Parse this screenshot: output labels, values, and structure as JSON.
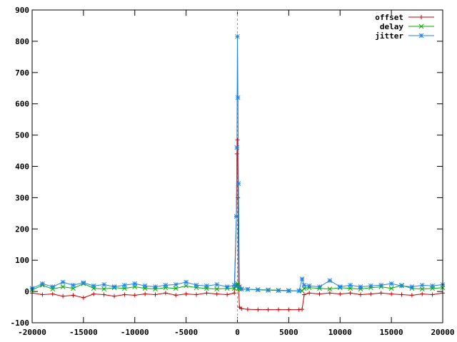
{
  "chart_data": {
    "type": "line",
    "title": "",
    "xlabel": "",
    "ylabel": "",
    "xlim": [
      -20000,
      20000
    ],
    "ylim": [
      -100,
      900
    ],
    "xticks": [
      -20000,
      -15000,
      -10000,
      -5000,
      0,
      5000,
      10000,
      15000,
      20000
    ],
    "yticks": [
      -100,
      0,
      100,
      200,
      300,
      400,
      500,
      600,
      700,
      800,
      900
    ],
    "xtick_labels": [
      "-20000",
      "-15000",
      "-10000",
      "-5000",
      "0",
      "5000",
      "10000",
      "15000",
      "20000"
    ],
    "ytick_labels": [
      "-100",
      "0",
      "100",
      "200",
      "300",
      "400",
      "500",
      "600",
      "700",
      "800",
      "900"
    ],
    "zero_line": {
      "axis": "x",
      "value": 0,
      "style": "dashed"
    },
    "legend_position": "top-right",
    "series": [
      {
        "name": "offset",
        "color": "#cc0000",
        "marker": "plus",
        "x": [
          -20000,
          -19000,
          -18000,
          -17000,
          -16000,
          -15000,
          -14000,
          -13000,
          -12000,
          -11000,
          -10000,
          -9000,
          -8000,
          -7000,
          -6000,
          -5000,
          -4000,
          -3000,
          -2000,
          -1000,
          -300,
          -100,
          -50,
          0,
          50,
          100,
          200,
          400,
          1000,
          2000,
          3000,
          4000,
          5000,
          6000,
          6300,
          6500,
          7000,
          8000,
          9000,
          10000,
          11000,
          12000,
          13000,
          14000,
          15000,
          16000,
          17000,
          18000,
          19000,
          20000
        ],
        "y": [
          -5,
          -10,
          -8,
          -15,
          -12,
          -20,
          -8,
          -10,
          -15,
          -10,
          -12,
          -8,
          -10,
          -5,
          -12,
          -8,
          -10,
          -5,
          -8,
          -10,
          -5,
          240,
          440,
          485,
          300,
          20,
          -50,
          -55,
          -57,
          -58,
          -58,
          -58,
          -58,
          -58,
          -57,
          -10,
          -5,
          -8,
          -5,
          -8,
          -5,
          -10,
          -8,
          -5,
          -8,
          -10,
          -12,
          -8,
          -10,
          -5
        ]
      },
      {
        "name": "delay",
        "color": "#00aa00",
        "marker": "cross",
        "x": [
          -20000,
          -19000,
          -18000,
          -17000,
          -16000,
          -15000,
          -14000,
          -13000,
          -12000,
          -11000,
          -10000,
          -9000,
          -8000,
          -7000,
          -6000,
          -5000,
          -4000,
          -3000,
          -2000,
          -1000,
          -300,
          -100,
          -50,
          0,
          50,
          100,
          200,
          400,
          1000,
          2000,
          3000,
          4000,
          5000,
          6000,
          6300,
          6500,
          7000,
          8000,
          9000,
          10000,
          11000,
          12000,
          13000,
          14000,
          15000,
          16000,
          17000,
          18000,
          19000,
          20000
        ],
        "y": [
          5,
          20,
          8,
          15,
          10,
          25,
          10,
          8,
          12,
          10,
          15,
          10,
          8,
          12,
          10,
          18,
          12,
          10,
          8,
          10,
          10,
          15,
          20,
          25,
          20,
          10,
          8,
          8,
          7,
          6,
          5,
          4,
          3,
          2,
          2,
          10,
          12,
          10,
          8,
          12,
          10,
          8,
          12,
          15,
          10,
          20,
          10,
          8,
          10,
          12
        ]
      },
      {
        "name": "jitter",
        "color": "#1e82e6",
        "marker": "star",
        "x": [
          -20000,
          -19000,
          -18000,
          -17000,
          -16000,
          -15000,
          -14000,
          -13000,
          -12000,
          -11000,
          -10000,
          -9000,
          -8000,
          -7000,
          -6000,
          -5000,
          -4000,
          -3000,
          -2000,
          -1000,
          -300,
          -100,
          -50,
          0,
          50,
          100,
          200,
          400,
          1000,
          2000,
          3000,
          4000,
          5000,
          6000,
          6300,
          6500,
          7000,
          8000,
          9000,
          10000,
          11000,
          12000,
          13000,
          14000,
          15000,
          16000,
          17000,
          18000,
          19000,
          20000
        ],
        "y": [
          10,
          25,
          15,
          30,
          20,
          28,
          18,
          22,
          15,
          20,
          25,
          18,
          15,
          20,
          22,
          30,
          20,
          18,
          22,
          15,
          20,
          240,
          460,
          815,
          620,
          345,
          15,
          8,
          7,
          5,
          4,
          3,
          2,
          2,
          40,
          20,
          18,
          15,
          35,
          15,
          20,
          15,
          18,
          20,
          25,
          18,
          15,
          20,
          18,
          22
        ]
      }
    ]
  }
}
